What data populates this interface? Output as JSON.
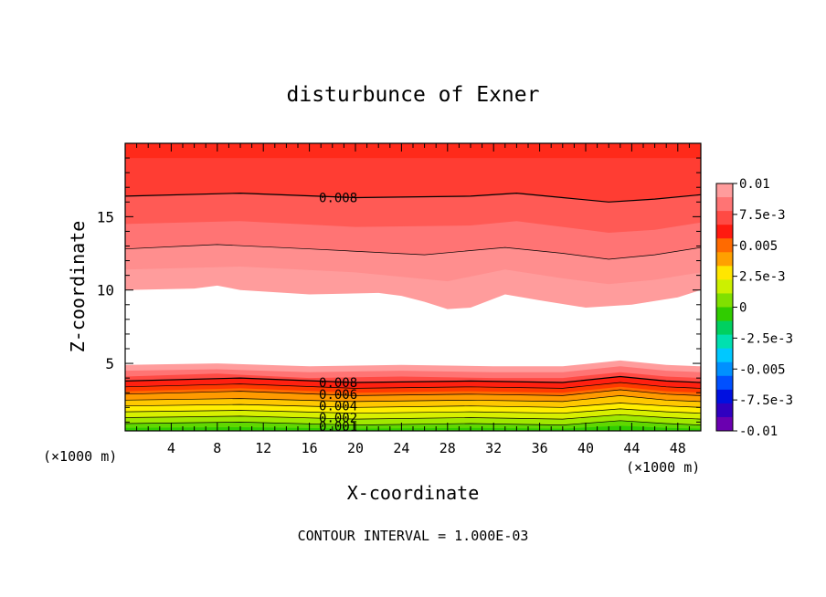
{
  "chart_data": {
    "type": "heatmap",
    "title": "disturbunce of Exner",
    "xlabel": "X-coordinate",
    "ylabel": "Z-coordinate",
    "x_unit": "(×1000 m)",
    "xlim": [
      0,
      50
    ],
    "ylim": [
      0.4,
      20
    ],
    "x_ticks": [
      4,
      8,
      12,
      16,
      20,
      24,
      28,
      32,
      36,
      40,
      44,
      48
    ],
    "y_ticks": [
      5,
      10,
      15
    ],
    "contour_labels": [
      {
        "text": "0.008",
        "x": 18.5,
        "z": 16.3
      },
      {
        "text": "0.008",
        "x": 18.5,
        "z": 3.7
      },
      {
        "text": "0.006",
        "x": 18.5,
        "z": 2.9
      },
      {
        "text": "0.004",
        "x": 18.5,
        "z": 2.1
      },
      {
        "text": "0.002",
        "x": 18.5,
        "z": 1.3
      },
      {
        "text": "0.001",
        "x": 18.5,
        "z": 0.7
      }
    ],
    "contour_lines_upper": [
      {
        "value": 0.008,
        "points": [
          [
            0,
            16.4
          ],
          [
            10,
            16.6
          ],
          [
            20,
            16.3
          ],
          [
            30,
            16.4
          ],
          [
            34,
            16.6
          ],
          [
            38,
            16.3
          ],
          [
            42,
            16.0
          ],
          [
            46,
            16.2
          ],
          [
            50,
            16.5
          ]
        ]
      },
      {
        "value": 0.007,
        "points": [
          [
            0,
            12.8
          ],
          [
            8,
            13.1
          ],
          [
            16,
            12.8
          ],
          [
            26,
            12.4
          ],
          [
            33,
            12.9
          ],
          [
            38,
            12.5
          ],
          [
            42,
            12.1
          ],
          [
            46,
            12.4
          ],
          [
            50,
            12.9
          ]
        ]
      }
    ],
    "contour_lines_lower": [
      {
        "value": 0.008,
        "points": [
          [
            0,
            3.8
          ],
          [
            10,
            4.0
          ],
          [
            20,
            3.7
          ],
          [
            30,
            3.8
          ],
          [
            38,
            3.7
          ],
          [
            43,
            4.1
          ],
          [
            47,
            3.8
          ],
          [
            50,
            3.7
          ]
        ]
      },
      {
        "value": 0.007,
        "points": [
          [
            0,
            3.4
          ],
          [
            10,
            3.6
          ],
          [
            20,
            3.3
          ],
          [
            30,
            3.4
          ],
          [
            38,
            3.3
          ],
          [
            43,
            3.7
          ],
          [
            47,
            3.4
          ],
          [
            50,
            3.3
          ]
        ]
      },
      {
        "value": 0.006,
        "points": [
          [
            0,
            2.9
          ],
          [
            10,
            3.1
          ],
          [
            20,
            2.8
          ],
          [
            30,
            2.9
          ],
          [
            38,
            2.8
          ],
          [
            43,
            3.2
          ],
          [
            47,
            2.9
          ],
          [
            50,
            2.8
          ]
        ]
      },
      {
        "value": 0.005,
        "points": [
          [
            0,
            2.5
          ],
          [
            10,
            2.6
          ],
          [
            20,
            2.4
          ],
          [
            30,
            2.5
          ],
          [
            38,
            2.4
          ],
          [
            43,
            2.8
          ],
          [
            47,
            2.5
          ],
          [
            50,
            2.4
          ]
        ]
      },
      {
        "value": 0.004,
        "points": [
          [
            0,
            2.1
          ],
          [
            10,
            2.2
          ],
          [
            20,
            2.0
          ],
          [
            30,
            2.1
          ],
          [
            38,
            2.0
          ],
          [
            43,
            2.3
          ],
          [
            47,
            2.1
          ],
          [
            50,
            2.0
          ]
        ]
      },
      {
        "value": 0.003,
        "points": [
          [
            0,
            1.7
          ],
          [
            10,
            1.8
          ],
          [
            20,
            1.6
          ],
          [
            30,
            1.7
          ],
          [
            38,
            1.6
          ],
          [
            43,
            1.9
          ],
          [
            47,
            1.7
          ],
          [
            50,
            1.6
          ]
        ]
      },
      {
        "value": 0.002,
        "points": [
          [
            0,
            1.3
          ],
          [
            10,
            1.4
          ],
          [
            20,
            1.2
          ],
          [
            30,
            1.3
          ],
          [
            38,
            1.2
          ],
          [
            43,
            1.5
          ],
          [
            47,
            1.3
          ],
          [
            50,
            1.2
          ]
        ]
      },
      {
        "value": 0.001,
        "points": [
          [
            0,
            0.9
          ],
          [
            10,
            1.0
          ],
          [
            20,
            0.8
          ],
          [
            30,
            0.9
          ],
          [
            38,
            0.8
          ],
          [
            43,
            1.1
          ],
          [
            47,
            0.9
          ],
          [
            50,
            0.8
          ]
        ]
      }
    ],
    "filled_bands_upper": [
      {
        "color": "#ff2a1a",
        "points": [
          [
            0,
            19.0
          ],
          [
            50,
            19.0
          ]
        ]
      },
      {
        "color": "#ff3d33",
        "points": [
          [
            0,
            16.4
          ],
          [
            10,
            16.6
          ],
          [
            20,
            16.3
          ],
          [
            30,
            16.4
          ],
          [
            34,
            16.6
          ],
          [
            38,
            16.3
          ],
          [
            42,
            16.0
          ],
          [
            46,
            16.2
          ],
          [
            50,
            16.5
          ]
        ]
      },
      {
        "color": "#ff5a55",
        "points": [
          [
            0,
            14.5
          ],
          [
            10,
            14.7
          ],
          [
            20,
            14.3
          ],
          [
            30,
            14.4
          ],
          [
            34,
            14.7
          ],
          [
            38,
            14.3
          ],
          [
            42,
            13.9
          ],
          [
            46,
            14.1
          ],
          [
            50,
            14.6
          ]
        ]
      },
      {
        "color": "#ff7474",
        "points": [
          [
            0,
            12.8
          ],
          [
            8,
            13.1
          ],
          [
            16,
            12.8
          ],
          [
            26,
            12.4
          ],
          [
            33,
            12.9
          ],
          [
            38,
            12.5
          ],
          [
            42,
            12.1
          ],
          [
            46,
            12.4
          ],
          [
            50,
            12.9
          ]
        ]
      },
      {
        "color": "#ff8e8e",
        "points": [
          [
            0,
            11.4
          ],
          [
            10,
            11.6
          ],
          [
            20,
            11.2
          ],
          [
            28,
            10.6
          ],
          [
            33,
            11.4
          ],
          [
            38,
            10.8
          ],
          [
            42,
            10.4
          ],
          [
            46,
            10.7
          ],
          [
            50,
            11.2
          ]
        ]
      },
      {
        "color": "#ff9c9c",
        "points": [
          [
            0,
            10.0
          ],
          [
            6,
            10.1
          ],
          [
            8,
            10.3
          ],
          [
            10,
            10.0
          ],
          [
            16,
            9.7
          ],
          [
            22,
            9.8
          ],
          [
            24,
            9.6
          ],
          [
            26,
            9.2
          ],
          [
            28,
            8.7
          ],
          [
            30,
            8.8
          ],
          [
            33,
            9.7
          ],
          [
            36,
            9.3
          ],
          [
            40,
            8.8
          ],
          [
            44,
            9.0
          ],
          [
            48,
            9.5
          ],
          [
            50,
            10.0
          ]
        ]
      }
    ],
    "filled_bands_lower": [
      {
        "color": "#ff9c9c",
        "points": [
          [
            0,
            4.9
          ],
          [
            8,
            5.0
          ],
          [
            16,
            4.8
          ],
          [
            24,
            4.9
          ],
          [
            32,
            4.8
          ],
          [
            38,
            4.8
          ],
          [
            43,
            5.2
          ],
          [
            47,
            4.9
          ],
          [
            50,
            4.8
          ]
        ]
      },
      {
        "color": "#ff7474",
        "points": [
          [
            0,
            4.5
          ],
          [
            8,
            4.6
          ],
          [
            16,
            4.4
          ],
          [
            24,
            4.5
          ],
          [
            32,
            4.4
          ],
          [
            38,
            4.4
          ],
          [
            43,
            4.8
          ],
          [
            47,
            4.5
          ],
          [
            50,
            4.4
          ]
        ]
      },
      {
        "color": "#ff4a44",
        "points": [
          [
            0,
            4.1
          ],
          [
            8,
            4.3
          ],
          [
            16,
            4.0
          ],
          [
            24,
            4.1
          ],
          [
            32,
            4.0
          ],
          [
            38,
            4.0
          ],
          [
            43,
            4.4
          ],
          [
            47,
            4.1
          ],
          [
            50,
            4.0
          ]
        ]
      },
      {
        "color": "#ff2010",
        "points": [
          [
            0,
            3.8
          ],
          [
            10,
            4.0
          ],
          [
            20,
            3.7
          ],
          [
            30,
            3.8
          ],
          [
            38,
            3.7
          ],
          [
            43,
            4.1
          ],
          [
            47,
            3.8
          ],
          [
            50,
            3.7
          ]
        ]
      },
      {
        "color": "#ff3a00",
        "points": [
          [
            0,
            3.4
          ],
          [
            10,
            3.6
          ],
          [
            20,
            3.3
          ],
          [
            30,
            3.4
          ],
          [
            38,
            3.3
          ],
          [
            43,
            3.7
          ],
          [
            47,
            3.4
          ],
          [
            50,
            3.3
          ]
        ]
      },
      {
        "color": "#ff6a00",
        "points": [
          [
            0,
            3.1
          ],
          [
            10,
            3.3
          ],
          [
            20,
            3.0
          ],
          [
            30,
            3.1
          ],
          [
            38,
            3.0
          ],
          [
            43,
            3.4
          ],
          [
            47,
            3.1
          ],
          [
            50,
            3.0
          ]
        ]
      },
      {
        "color": "#ff9a00",
        "points": [
          [
            0,
            2.9
          ],
          [
            10,
            3.1
          ],
          [
            20,
            2.8
          ],
          [
            30,
            2.9
          ],
          [
            38,
            2.8
          ],
          [
            43,
            3.2
          ],
          [
            47,
            2.9
          ],
          [
            50,
            2.8
          ]
        ]
      },
      {
        "color": "#ffc800",
        "points": [
          [
            0,
            2.5
          ],
          [
            10,
            2.6
          ],
          [
            20,
            2.4
          ],
          [
            30,
            2.5
          ],
          [
            38,
            2.4
          ],
          [
            43,
            2.8
          ],
          [
            47,
            2.5
          ],
          [
            50,
            2.4
          ]
        ]
      },
      {
        "color": "#ffee00",
        "points": [
          [
            0,
            2.1
          ],
          [
            10,
            2.2
          ],
          [
            20,
            2.0
          ],
          [
            30,
            2.1
          ],
          [
            38,
            2.0
          ],
          [
            43,
            2.3
          ],
          [
            47,
            2.1
          ],
          [
            50,
            2.0
          ]
        ]
      },
      {
        "color": "#d8f000",
        "points": [
          [
            0,
            1.7
          ],
          [
            10,
            1.8
          ],
          [
            20,
            1.6
          ],
          [
            30,
            1.7
          ],
          [
            38,
            1.6
          ],
          [
            43,
            1.9
          ],
          [
            47,
            1.7
          ],
          [
            50,
            1.6
          ]
        ]
      },
      {
        "color": "#a0e800",
        "points": [
          [
            0,
            1.3
          ],
          [
            10,
            1.4
          ],
          [
            20,
            1.2
          ],
          [
            30,
            1.3
          ],
          [
            38,
            1.2
          ],
          [
            43,
            1.5
          ],
          [
            47,
            1.3
          ],
          [
            50,
            1.2
          ]
        ]
      },
      {
        "color": "#60d800",
        "points": [
          [
            0,
            0.9
          ],
          [
            10,
            1.0
          ],
          [
            20,
            0.8
          ],
          [
            30,
            0.9
          ],
          [
            38,
            0.8
          ],
          [
            43,
            1.1
          ],
          [
            47,
            0.9
          ],
          [
            50,
            0.8
          ]
        ]
      },
      {
        "color": "#30cc00",
        "points": [
          [
            0,
            0.6
          ],
          [
            10,
            0.65
          ],
          [
            20,
            0.55
          ],
          [
            30,
            0.6
          ],
          [
            38,
            0.55
          ],
          [
            43,
            0.75
          ],
          [
            47,
            0.6
          ],
          [
            50,
            0.55
          ]
        ]
      }
    ],
    "colorbar": {
      "labels": [
        "0.01",
        "7.5e-3",
        "0.005",
        "2.5e-3",
        "0",
        "-2.5e-3",
        "-0.005",
        "-7.5e-3",
        "-0.01"
      ],
      "colors": [
        "#ff9c9c",
        "#ff7474",
        "#ff4a44",
        "#ff1a10",
        "#ff6a00",
        "#ffa000",
        "#ffe600",
        "#ccf000",
        "#80e000",
        "#30cc00",
        "#00d060",
        "#00e0b0",
        "#00c8ff",
        "#0090ff",
        "#0050ff",
        "#0010e0",
        "#3000c0",
        "#6a00b0"
      ]
    },
    "footer": "CONTOUR INTERVAL = 1.000E-03"
  }
}
